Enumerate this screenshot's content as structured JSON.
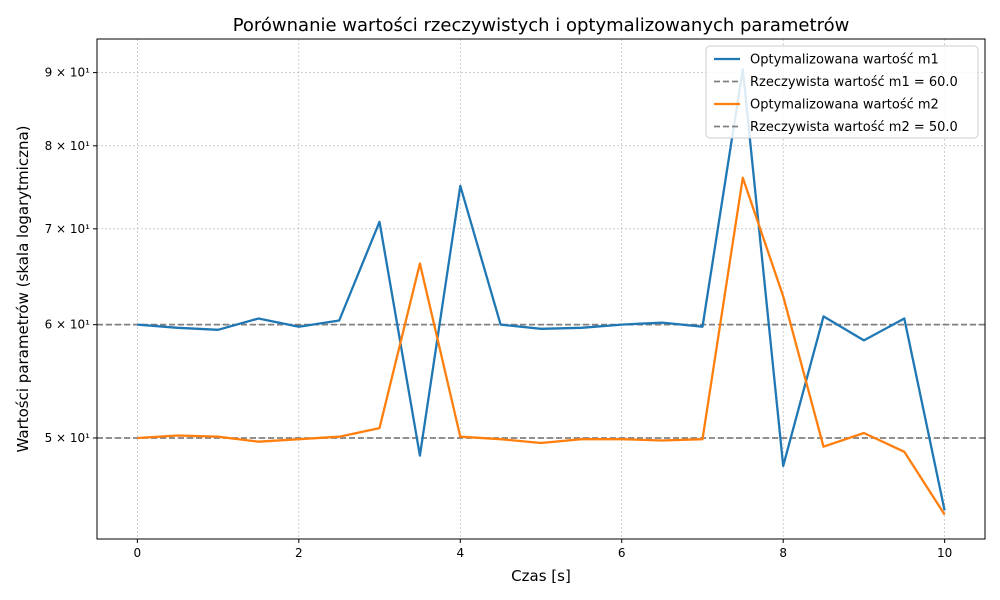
{
  "chart_data": {
    "type": "line",
    "title": "Porównanie wartości rzeczywistych i optymalizowanych parametrów",
    "xlabel": "Czas [s]",
    "ylabel": "Wartości parametrów (skala logarytmiczna)",
    "yscale": "log",
    "xlim": [
      -0.5,
      10.5
    ],
    "ylim": [
      42.5,
      95.0
    ],
    "xticks": [
      0,
      2,
      4,
      6,
      8,
      10
    ],
    "yticks": [
      {
        "value": 50,
        "label": "5 × 10¹"
      },
      {
        "value": 60,
        "label": "6 × 10¹"
      },
      {
        "value": 70,
        "label": "7 × 10¹"
      },
      {
        "value": 80,
        "label": "8 × 10¹"
      },
      {
        "value": 90,
        "label": "9 × 10¹"
      }
    ],
    "grid": true,
    "legend_position": "top-right",
    "x": [
      0,
      0.5,
      1,
      1.5,
      2,
      2.5,
      3,
      3.5,
      4,
      4.5,
      5,
      5.5,
      6,
      6.5,
      7,
      7.5,
      8,
      8.5,
      9,
      9.5,
      10
    ],
    "series": [
      {
        "name": "Optymalizowana wartość m1",
        "color": "#1f77b4",
        "style": "solid",
        "values": [
          60.0,
          59.7,
          59.5,
          60.6,
          59.8,
          60.4,
          70.8,
          48.6,
          75.0,
          60.0,
          59.6,
          59.7,
          60.0,
          60.2,
          59.8,
          90.5,
          47.8,
          60.8,
          58.5,
          60.6,
          44.5
        ]
      },
      {
        "name": "Rzeczywista wartość m1 = 60.0",
        "color": "#808080",
        "style": "dashed",
        "constant": 60.0
      },
      {
        "name": "Optymalizowana wartość m2",
        "color": "#ff7f0e",
        "style": "solid",
        "values": [
          50.0,
          50.2,
          50.1,
          49.7,
          49.9,
          50.1,
          50.8,
          66.2,
          50.1,
          49.9,
          49.6,
          49.9,
          49.9,
          49.8,
          49.9,
          76.0,
          62.8,
          49.3,
          50.4,
          48.9,
          44.2
        ]
      },
      {
        "name": "Rzeczywista wartość m2 = 50.0",
        "color": "#808080",
        "style": "dashed",
        "constant": 50.0
      }
    ]
  }
}
